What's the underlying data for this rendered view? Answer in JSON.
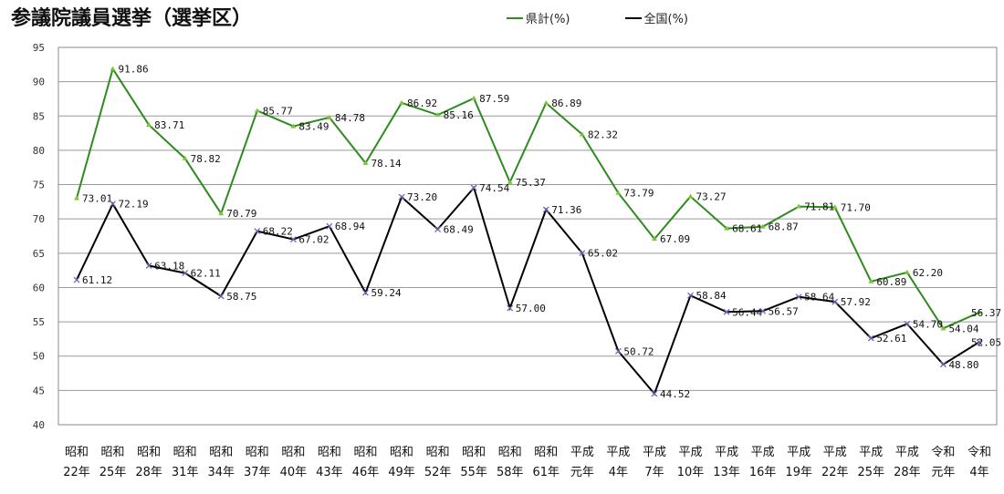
{
  "chart_data": {
    "type": "line",
    "title": "参議院議員選挙（選挙区）",
    "categories": [
      [
        "昭和",
        "22年"
      ],
      [
        "昭和",
        "25年"
      ],
      [
        "昭和",
        "28年"
      ],
      [
        "昭和",
        "31年"
      ],
      [
        "昭和",
        "34年"
      ],
      [
        "昭和",
        "37年"
      ],
      [
        "昭和",
        "40年"
      ],
      [
        "昭和",
        "43年"
      ],
      [
        "昭和",
        "46年"
      ],
      [
        "昭和",
        "49年"
      ],
      [
        "昭和",
        "52年"
      ],
      [
        "昭和",
        "55年"
      ],
      [
        "昭和",
        "58年"
      ],
      [
        "昭和",
        "61年"
      ],
      [
        "平成",
        "元年"
      ],
      [
        "平成",
        "4年"
      ],
      [
        "平成",
        "7年"
      ],
      [
        "平成",
        "10年"
      ],
      [
        "平成",
        "13年"
      ],
      [
        "平成",
        "16年"
      ],
      [
        "平成",
        "19年"
      ],
      [
        "平成",
        "22年"
      ],
      [
        "平成",
        "25年"
      ],
      [
        "平成",
        "28年"
      ],
      [
        "令和",
        "元年"
      ],
      [
        "令和",
        "4年"
      ]
    ],
    "series": [
      {
        "name": "県計(%)",
        "color": "#2e8b1e",
        "marker_color": "#7cc33c",
        "values": [
          73.01,
          91.86,
          83.71,
          78.82,
          70.79,
          85.77,
          83.49,
          84.78,
          78.14,
          86.92,
          85.16,
          87.59,
          75.37,
          86.89,
          82.32,
          73.79,
          67.09,
          73.27,
          68.61,
          68.87,
          71.81,
          71.7,
          60.89,
          62.2,
          54.04,
          56.37
        ],
        "labels": [
          "73.01",
          "91.86",
          "83.71",
          "78.82",
          "70.79",
          "85.77",
          "83.49",
          "84.78",
          "78.14",
          "86.92",
          "85.16",
          "87.59",
          "75.37",
          "86.89",
          "82.32",
          "73.79",
          "67.09",
          "73.27",
          "68.61",
          "68.87",
          "71.81",
          "71.70",
          "60.89",
          "62.20",
          "54.04",
          "56.37"
        ]
      },
      {
        "name": "全国(%)",
        "color": "#000000",
        "marker_color": "#6a6ab8",
        "values": [
          61.12,
          72.19,
          63.18,
          62.11,
          58.75,
          68.22,
          67.02,
          68.94,
          59.24,
          73.2,
          68.49,
          74.54,
          57.0,
          71.36,
          65.02,
          50.72,
          44.52,
          58.84,
          56.44,
          56.57,
          58.64,
          57.92,
          52.61,
          54.7,
          48.8,
          52.05
        ],
        "labels": [
          "61.12",
          "72.19",
          "63.18",
          "62.11",
          "58.75",
          "68.22",
          "67.02",
          "68.94",
          "59.24",
          "73.20",
          "68.49",
          "74.54",
          "57.00",
          "71.36",
          "65.02",
          "50.72",
          "44.52",
          "58.84",
          "56.44",
          "56.57",
          "58.64",
          "57.92",
          "52.61",
          "54.70",
          "48.80",
          "52.05"
        ]
      }
    ],
    "ylim": [
      40,
      95
    ],
    "yticks": [
      "40",
      "45",
      "50",
      "55",
      "60",
      "65",
      "70",
      "75",
      "80",
      "85",
      "90",
      "95"
    ],
    "grid": true,
    "legend_position": "top-center"
  }
}
